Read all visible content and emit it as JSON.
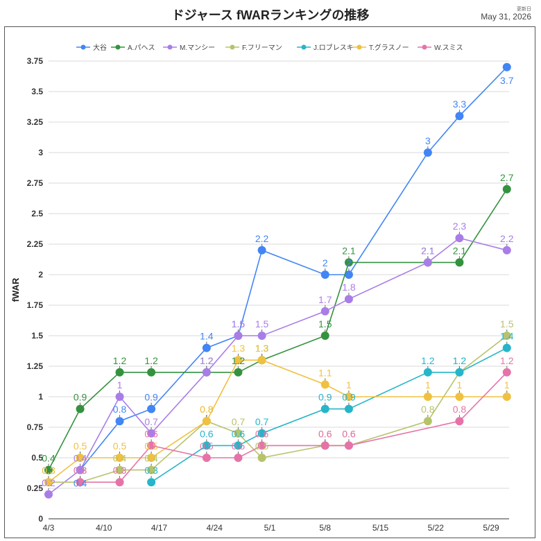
{
  "header": {
    "title": "ドジャース fWARランキングの推移",
    "updated_label": "更新日",
    "updated_date": "May 31, 2026"
  },
  "chart_data": {
    "type": "line",
    "title": "ドジャース fWARランキングの推移",
    "xlabel": "",
    "ylabel": "fWAR",
    "ylim": [
      0,
      3.75
    ],
    "yticks": [
      "0",
      "0.25",
      "0.5",
      "0.75",
      "1",
      "1.25",
      "1.5",
      "1.75",
      "2",
      "2.25",
      "2.5",
      "2.75",
      "3",
      "3.25",
      "3.5",
      "3.75"
    ],
    "xticks": [
      {
        "label": "4/3",
        "day": 0
      },
      {
        "label": "4/10",
        "day": 7
      },
      {
        "label": "4/17",
        "day": 14
      },
      {
        "label": "4/24",
        "day": 21
      },
      {
        "label": "5/1",
        "day": 28
      },
      {
        "label": "5/8",
        "day": 35
      },
      {
        "label": "5/15",
        "day": 42
      },
      {
        "label": "5/22",
        "day": 49
      },
      {
        "label": "5/29",
        "day": 56
      }
    ],
    "x_range_days": [
      0,
      56
    ],
    "legend_position": "top",
    "grid": true,
    "series": [
      {
        "name": "大谷",
        "color": "#4285f4",
        "points": [
          [
            4,
            0.4
          ],
          [
            9,
            0.8
          ],
          [
            13,
            0.9
          ],
          [
            20,
            1.4
          ],
          [
            24,
            1.5
          ],
          [
            27,
            2.2
          ],
          [
            35,
            2.0
          ],
          [
            38,
            2.0
          ],
          [
            48,
            3.0
          ],
          [
            52,
            3.3
          ],
          [
            58,
            3.7
          ]
        ]
      },
      {
        "name": "A.パヘス",
        "color": "#34923f",
        "points": [
          [
            0,
            0.4
          ],
          [
            4,
            0.9
          ],
          [
            9,
            1.2
          ],
          [
            13,
            1.2
          ],
          [
            20,
            1.2
          ],
          [
            24,
            1.2
          ],
          [
            27,
            1.3
          ],
          [
            35,
            1.5
          ],
          [
            38,
            2.1
          ],
          [
            48,
            2.1
          ],
          [
            52,
            2.1
          ],
          [
            58,
            2.7
          ]
        ]
      },
      {
        "name": "M.マンシー",
        "color": "#a97de8",
        "points": [
          [
            0,
            0.2
          ],
          [
            4,
            0.4
          ],
          [
            9,
            1.0
          ],
          [
            13,
            0.7
          ],
          [
            20,
            1.2
          ],
          [
            24,
            1.5
          ],
          [
            27,
            1.5
          ],
          [
            35,
            1.7
          ],
          [
            38,
            1.8
          ],
          [
            48,
            2.1
          ],
          [
            52,
            2.3
          ],
          [
            58,
            2.2
          ]
        ]
      },
      {
        "name": "F.フリーマン",
        "color": "#b7c36b",
        "points": [
          [
            0,
            0.3
          ],
          [
            4,
            0.3
          ],
          [
            9,
            0.4
          ],
          [
            13,
            0.4
          ],
          [
            20,
            0.8
          ],
          [
            24,
            0.7
          ],
          [
            27,
            0.5
          ],
          [
            35,
            0.6
          ],
          [
            38,
            0.6
          ],
          [
            48,
            0.8
          ],
          [
            52,
            1.2
          ],
          [
            58,
            1.5
          ]
        ]
      },
      {
        "name": "J.ロブレスキー",
        "color": "#26b5c9",
        "points": [
          [
            13,
            0.3
          ],
          [
            20,
            0.6
          ],
          [
            24,
            0.6
          ],
          [
            27,
            0.7
          ],
          [
            35,
            0.9
          ],
          [
            38,
            0.9
          ],
          [
            48,
            1.2
          ],
          [
            52,
            1.2
          ],
          [
            58,
            1.4
          ]
        ]
      },
      {
        "name": "T.グラスノー",
        "color": "#f0c040",
        "points": [
          [
            0,
            0.3
          ],
          [
            4,
            0.5
          ],
          [
            9,
            0.5
          ],
          [
            13,
            0.5
          ],
          [
            20,
            0.8
          ],
          [
            24,
            1.3
          ],
          [
            27,
            1.3
          ],
          [
            35,
            1.1
          ],
          [
            38,
            1.0
          ],
          [
            48,
            1.0
          ],
          [
            52,
            1.0
          ],
          [
            58,
            1.0
          ]
        ]
      },
      {
        "name": "W.スミス",
        "color": "#e573a8",
        "points": [
          [
            4,
            0.3
          ],
          [
            9,
            0.3
          ],
          [
            13,
            0.6
          ],
          [
            20,
            0.5
          ],
          [
            24,
            0.5
          ],
          [
            27,
            0.6
          ],
          [
            35,
            0.6
          ],
          [
            38,
            0.6
          ],
          [
            52,
            0.8
          ],
          [
            58,
            1.2
          ]
        ]
      }
    ]
  }
}
